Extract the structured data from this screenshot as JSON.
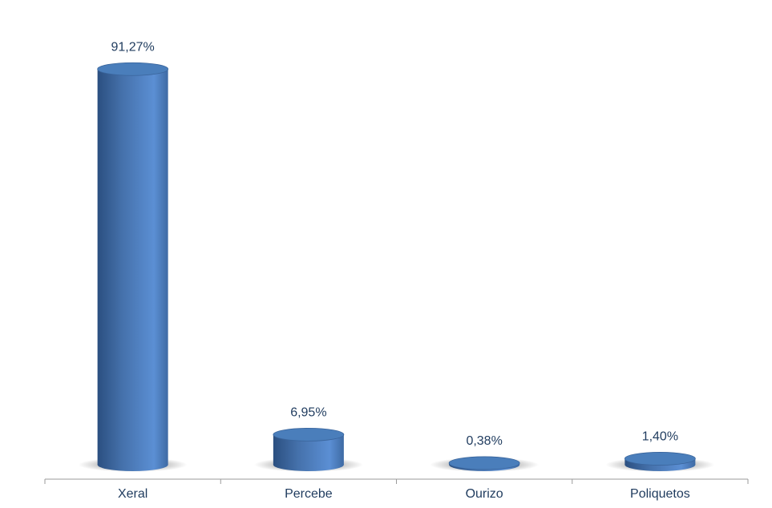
{
  "chart_data": {
    "type": "bar",
    "categories": [
      "Xeral",
      "Percebe",
      "Ourizo",
      "Poliquetos"
    ],
    "values": [
      91.27,
      6.95,
      0.38,
      1.4
    ],
    "value_labels": [
      "91,27%",
      "6,95%",
      "0,38%",
      "1,40%"
    ],
    "color": "#4a7ebb"
  }
}
